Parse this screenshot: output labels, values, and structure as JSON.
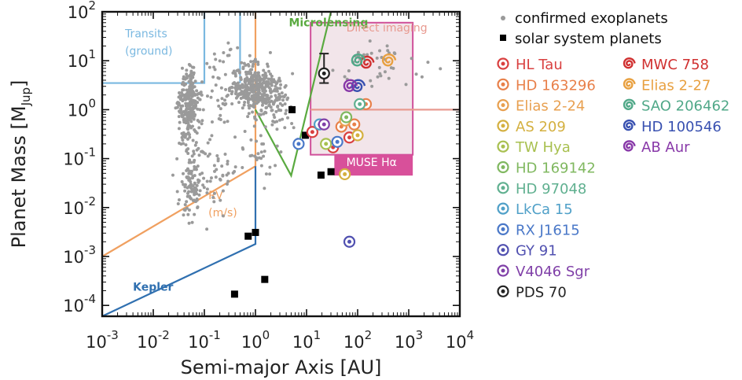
{
  "chart_data": {
    "type": "scatter",
    "xlabel": "Semi-major Axis [AU]",
    "ylabel_main": "Planet Mass [M",
    "ylabel_sub": "Jup",
    "ylabel_close": "]",
    "xscale": "log",
    "yscale": "log",
    "xlim": [
      0.001,
      10000
    ],
    "ylim": [
      6e-05,
      100
    ],
    "x_ticks": [
      {
        "v": 0.001,
        "base": "10",
        "exp": "-3"
      },
      {
        "v": 0.01,
        "base": "10",
        "exp": "-2"
      },
      {
        "v": 0.1,
        "base": "10",
        "exp": "-1"
      },
      {
        "v": 1,
        "base": "10",
        "exp": "0"
      },
      {
        "v": 10,
        "base": "10",
        "exp": "1"
      },
      {
        "v": 100,
        "base": "10",
        "exp": "2"
      },
      {
        "v": 1000,
        "base": "10",
        "exp": "3"
      },
      {
        "v": 10000,
        "base": "10",
        "exp": "4"
      }
    ],
    "y_ticks": [
      {
        "v": 0.0001,
        "base": "10",
        "exp": "-4"
      },
      {
        "v": 0.001,
        "base": "10",
        "exp": "-3"
      },
      {
        "v": 0.01,
        "base": "10",
        "exp": "-2"
      },
      {
        "v": 0.1,
        "base": "10",
        "exp": "-1"
      },
      {
        "v": 1,
        "base": "10",
        "exp": "0"
      },
      {
        "v": 10,
        "base": "10",
        "exp": "1"
      },
      {
        "v": 100,
        "base": "10",
        "exp": "2"
      }
    ],
    "legend_position": "right",
    "legend_markers": [
      {
        "label": "confirmed exoplanets",
        "marker": "gray-dot",
        "color": "#9a9a9a"
      },
      {
        "label": "solar system planets",
        "marker": "black-square",
        "color": "#000000"
      }
    ],
    "disk_systems": [
      {
        "label": "HL Tau",
        "color": "#d94040",
        "marker": "ring"
      },
      {
        "label": "HD 163296",
        "color": "#e8804a",
        "marker": "ring"
      },
      {
        "label": "Elias 2-24",
        "color": "#e8a050",
        "marker": "ring"
      },
      {
        "label": "AS 209",
        "color": "#d4b040",
        "marker": "ring"
      },
      {
        "label": "TW Hya",
        "color": "#a8c050",
        "marker": "ring"
      },
      {
        "label": "HD 169142",
        "color": "#80b860",
        "marker": "ring"
      },
      {
        "label": "HD 97048",
        "color": "#60b090",
        "marker": "ring"
      },
      {
        "label": "LkCa 15",
        "color": "#50a0c8",
        "marker": "ring"
      },
      {
        "label": "RX J1615",
        "color": "#4a78c8",
        "marker": "ring"
      },
      {
        "label": "GY 91",
        "color": "#5050b0",
        "marker": "ring"
      },
      {
        "label": "V4046 Sgr",
        "color": "#8040a8",
        "marker": "ring"
      },
      {
        "label": "PDS 70",
        "color": "#222222",
        "marker": "ring"
      },
      {
        "label": "MWC 758",
        "color": "#d03030",
        "marker": "spiral"
      },
      {
        "label": "Elias 2-27",
        "color": "#e8a040",
        "marker": "spiral"
      },
      {
        "label": "SAO 206462",
        "color": "#50a888",
        "marker": "spiral"
      },
      {
        "label": "HD 100546",
        "color": "#3850b0",
        "marker": "spiral"
      },
      {
        "label": "AB Aur",
        "color": "#8838a8",
        "marker": "spiral"
      }
    ],
    "regions": [
      {
        "label": "Transits\n(ground)",
        "color": "#7ab8e0",
        "text_x": 0.0028,
        "text_y": 30
      },
      {
        "label": "Microlensing",
        "color": "#5aaa40",
        "text_x": 4.5,
        "text_y": 50
      },
      {
        "label": "Direct imaging",
        "color": "#e89a90",
        "text_x": 60,
        "text_y": 40
      },
      {
        "label": "RV\n(m/s)",
        "color": "#f0a060",
        "text_x": 0.12,
        "text_y": 0.015
      },
      {
        "label": "Kepler",
        "color": "#3070b0",
        "text_x": 0.004,
        "text_y": 0.0002
      },
      {
        "label": "MUSE Hα",
        "color": "#ffffff",
        "text_x": 60,
        "text_y": 0.07
      }
    ],
    "region_lines": {
      "transits": {
        "color": "#7ab8e0",
        "points": [
          [
            0.001,
            3.5
          ],
          [
            0.1,
            3.5
          ],
          [
            0.1,
            100
          ]
        ],
        "vline2": [
          [
            0.5,
            3.5
          ],
          [
            0.5,
            100
          ]
        ]
      },
      "rv": {
        "color": "#f0a060",
        "points": [
          [
            0.001,
            0.001
          ],
          [
            1,
            0.07
          ],
          [
            1,
            100
          ]
        ]
      },
      "kepler": {
        "color": "#3070b0",
        "points": [
          [
            0.001,
            6e-05
          ],
          [
            1,
            0.0018
          ],
          [
            1,
            0.07
          ]
        ]
      },
      "microlensing": {
        "color": "#5aaa40",
        "points": [
          [
            1,
            1
          ],
          [
            5,
            0.045
          ],
          [
            30,
            100
          ]
        ]
      },
      "direct_imaging_line": {
        "color": "#e89a90",
        "points": [
          [
            12,
            1
          ],
          [
            10000,
            1
          ]
        ]
      }
    },
    "direct_imaging_box": {
      "x": [
        12,
        1200
      ],
      "y": [
        0.12,
        60
      ],
      "fill": "#e8d0d8",
      "edge": "#d0509a"
    },
    "muse_box": {
      "x": [
        35,
        1200
      ],
      "y": [
        0.045,
        0.12
      ],
      "fill": "#d8509a"
    },
    "solar_system": [
      {
        "x": 0.39,
        "y": 0.00017
      },
      {
        "x": 0.72,
        "y": 0.0026
      },
      {
        "x": 1.0,
        "y": 0.0031
      },
      {
        "x": 1.52,
        "y": 0.00034
      },
      {
        "x": 5.2,
        "y": 1.0
      },
      {
        "x": 9.5,
        "y": 0.3
      },
      {
        "x": 19.2,
        "y": 0.046
      },
      {
        "x": 30.1,
        "y": 0.054
      }
    ],
    "disk_points": [
      {
        "sys": "HL Tau",
        "x": 13,
        "y": 0.35
      },
      {
        "sys": "HL Tau",
        "x": 33,
        "y": 0.17
      },
      {
        "sys": "HL Tau",
        "x": 69,
        "y": 0.27
      },
      {
        "sys": "HD 163296",
        "x": 48,
        "y": 0.45
      },
      {
        "sys": "HD 163296",
        "x": 86,
        "y": 0.5
      },
      {
        "sys": "HD 163296",
        "x": 145,
        "y": 1.3
      },
      {
        "sys": "Elias 2-24",
        "x": 57,
        "y": 0.6
      },
      {
        "sys": "AS 209",
        "x": 56,
        "y": 0.048
      },
      {
        "sys": "AS 209",
        "x": 100,
        "y": 0.3
      },
      {
        "sys": "TW Hya",
        "x": 24,
        "y": 0.2
      },
      {
        "sys": "HD 169142",
        "x": 60,
        "y": 0.7
      },
      {
        "sys": "HD 97048",
        "x": 110,
        "y": 1.3
      },
      {
        "sys": "LkCa 15",
        "x": 18,
        "y": 0.5
      },
      {
        "sys": "RX J1615",
        "x": 7,
        "y": 0.2
      },
      {
        "sys": "RX J1615",
        "x": 40,
        "y": 0.22
      },
      {
        "sys": "GY 91",
        "x": 69,
        "y": 0.002
      },
      {
        "sys": "V4046 Sgr",
        "x": 22,
        "y": 0.5
      },
      {
        "sys": "MWC 758",
        "x": 150,
        "y": 9
      },
      {
        "sys": "Elias 2-27",
        "x": 400,
        "y": 10
      },
      {
        "sys": "SAO 206462",
        "x": 100,
        "y": 10
      },
      {
        "sys": "HD 100546",
        "x": 100,
        "y": 3
      },
      {
        "sys": "AB Aur",
        "x": 70,
        "y": 3
      }
    ],
    "pds70": {
      "x": 22,
      "y": 5.5,
      "yerr_low": 3.5,
      "yerr_high": 14
    }
  }
}
